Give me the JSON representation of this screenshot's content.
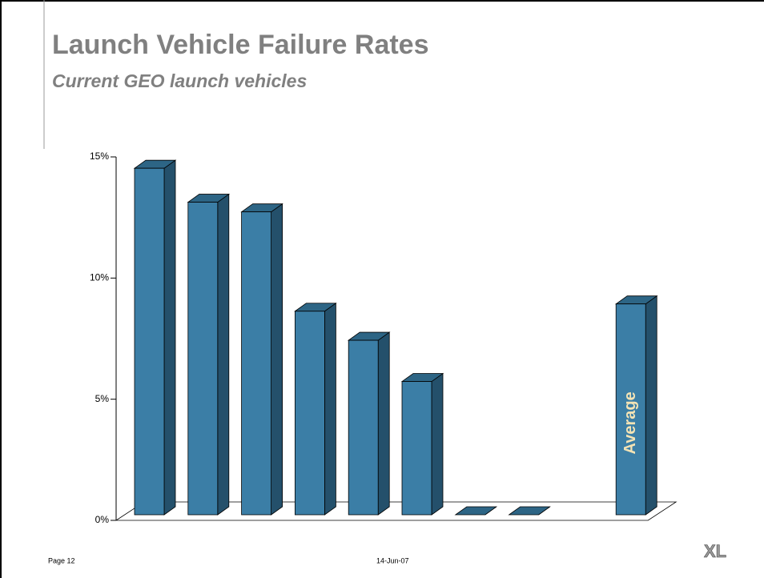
{
  "chart_data": {
    "type": "bar3d",
    "title": "Launch Vehicle Failure Rates",
    "subtitle": "Current GEO launch vehicles",
    "categories": [
      null,
      null,
      null,
      null,
      null,
      null,
      null,
      null,
      null,
      null
    ],
    "values": [
      14.3,
      12.9,
      12.5,
      8.4,
      7.2,
      5.5,
      0,
      0,
      null,
      8.7
    ],
    "annotations": [
      {
        "text": "Average",
        "index": 9
      }
    ],
    "color": "#3b7ea6",
    "ylim": [
      0,
      15
    ],
    "yticks": [
      {
        "value": 0,
        "label": "0%"
      },
      {
        "value": 5,
        "label": "5%"
      },
      {
        "value": 10,
        "label": "10%"
      },
      {
        "value": 15,
        "label": "15%"
      }
    ]
  },
  "footer": {
    "page": "Page 12",
    "date": "14-Jun-07",
    "logo": "XL"
  }
}
